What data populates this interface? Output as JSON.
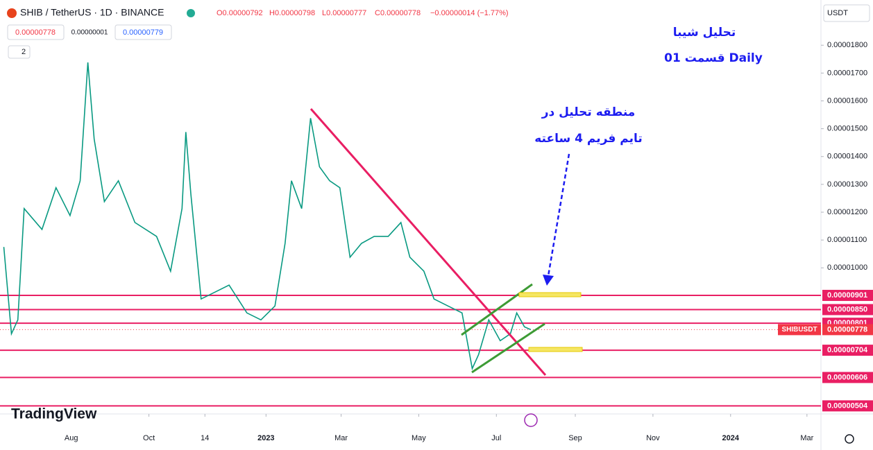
{
  "header": {
    "symbol": "SHIB / TetherUS · 1D · BINANCE",
    "ohlc": [
      "O0.00000792",
      "H0.00000798",
      "L0.00000777",
      "C0.00000778",
      "−0.00000014 (−1.77%)"
    ],
    "sell": "0.00000778",
    "spread": "0.00000001",
    "buy": "0.00000779",
    "indicators": "2",
    "currency": "USDT",
    "logo": "TradingView"
  },
  "chart_data": {
    "type": "line",
    "color": "#089981",
    "annotations": [
      "تحليل شيبا",
      "Daily  قسمت 01",
      "منطقه تحليل در",
      "تايم فريم 4 ساعته"
    ],
    "xlim": [
      "2022-06-06",
      "2024-03-12"
    ],
    "xticks": [
      {
        "value": "2022-08-01",
        "label": "Aug"
      },
      {
        "value": "2022-10-01",
        "label": "Oct"
      },
      {
        "value": "2022-11-14",
        "label": "14"
      },
      {
        "value": "2023-01-01",
        "label": "2023"
      },
      {
        "value": "2023-03-01",
        "label": "Mar"
      },
      {
        "value": "2023-05-01",
        "label": "May"
      },
      {
        "value": "2023-07-01",
        "label": "Jul"
      },
      {
        "value": "2023-09-01",
        "label": "Sep"
      },
      {
        "value": "2023-11-01",
        "label": "Nov"
      },
      {
        "value": "2024-01-01",
        "label": "2024"
      },
      {
        "value": "2024-03-01",
        "label": "Mar"
      }
    ],
    "ylim": [
      4.75e-06,
      1.9625e-05
    ],
    "yticks": [
      {
        "value": 1e-05,
        "label": "0.00001000"
      },
      {
        "value": 1.1e-05,
        "label": "0.00001100"
      },
      {
        "value": 1.2e-05,
        "label": "0.00001200"
      },
      {
        "value": 1.3e-05,
        "label": "0.00001300"
      },
      {
        "value": 1.4e-05,
        "label": "0.00001400"
      },
      {
        "value": 1.5e-05,
        "label": "0.00001500"
      },
      {
        "value": 1.6e-05,
        "label": "0.00001600"
      },
      {
        "value": 1.7e-05,
        "label": "0.00001700"
      },
      {
        "value": 1.8e-05,
        "label": "0.00001800"
      }
    ],
    "levels": [
      {
        "value": 9.01e-06,
        "label": "0.00000901"
      },
      {
        "value": 8.5e-06,
        "label": "0.00000850"
      },
      {
        "value": 8.01e-06,
        "label": "0.00000801"
      },
      {
        "value": 7.04e-06,
        "label": "0.00000704"
      },
      {
        "value": 6.06e-06,
        "label": "0.00000606"
      },
      {
        "value": 5.04e-06,
        "label": "0.00000504"
      }
    ],
    "last": {
      "name": "SHIBUSDT",
      "value": 7.78e-06,
      "label": "0.00000778"
    },
    "x": [
      "2022-06-09",
      "2022-06-15",
      "2022-06-20",
      "2022-06-25",
      "2022-07-09",
      "2022-07-20",
      "2022-07-31",
      "2022-08-08",
      "2022-08-14",
      "2022-08-19",
      "2022-08-27",
      "2022-09-07",
      "2022-09-20",
      "2022-10-07",
      "2022-10-18",
      "2022-10-27",
      "2022-10-30",
      "2022-11-03",
      "2022-11-11",
      "2022-11-22",
      "2022-12-03",
      "2022-12-17",
      "2022-12-28",
      "2023-01-08",
      "2023-01-16",
      "2023-01-21",
      "2023-01-29",
      "2023-02-05",
      "2023-02-12",
      "2023-02-20",
      "2023-02-28",
      "2023-03-08",
      "2023-03-17",
      "2023-03-27",
      "2023-04-07",
      "2023-04-17",
      "2023-04-24",
      "2023-05-05",
      "2023-05-13",
      "2023-05-24",
      "2023-06-04",
      "2023-06-12",
      "2023-06-17",
      "2023-06-25",
      "2023-07-04",
      "2023-07-12",
      "2023-07-17",
      "2023-07-23",
      "2023-07-28"
    ],
    "values": [
      1.075e-05,
      7.63e-06,
      8.13e-06,
      1.213e-05,
      1.138e-05,
      1.288e-05,
      1.188e-05,
      1.313e-05,
      1.738e-05,
      1.463e-05,
      1.238e-05,
      1.313e-05,
      1.163e-05,
      1.113e-05,
      9.88e-06,
      1.213e-05,
      1.488e-05,
      1.263e-05,
      8.88e-06,
      9.13e-06,
      9.38e-06,
      8.38e-06,
      8.13e-06,
      8.63e-06,
      1.088e-05,
      1.313e-05,
      1.213e-05,
      1.538e-05,
      1.363e-05,
      1.313e-05,
      1.288e-05,
      1.038e-05,
      1.088e-05,
      1.113e-05,
      1.113e-05,
      1.163e-05,
      1.038e-05,
      9.88e-06,
      8.88e-06,
      8.63e-06,
      8.38e-06,
      6.38e-06,
      6.88e-06,
      8.13e-06,
      7.38e-06,
      7.63e-06,
      8.38e-06,
      7.88e-06,
      7.78e-06
    ]
  }
}
